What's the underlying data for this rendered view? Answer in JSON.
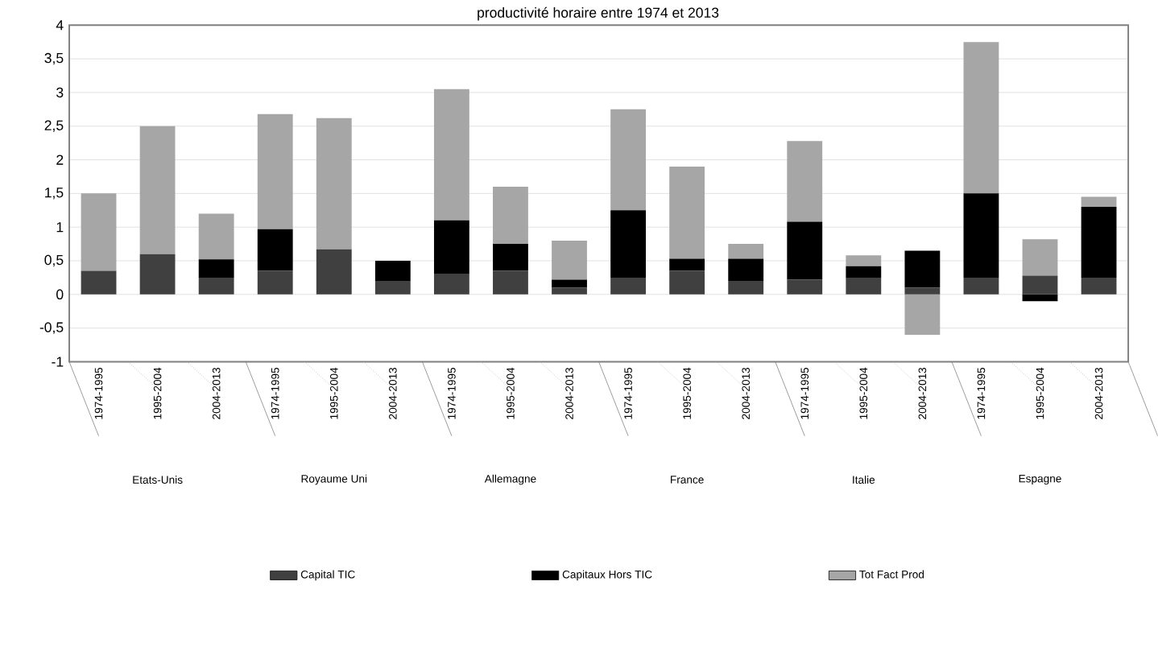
{
  "chart_data": {
    "type": "bar",
    "title": "productivité horaire entre 1974 et 2013",
    "stacked": true,
    "categories": [
      "1974-1995",
      "1995-2004",
      "2004-2013",
      "1974-1995",
      "1995-2004",
      "2004-2013",
      "1974-1995",
      "1995-2004",
      "2004-2013",
      "1974-1995",
      "1995-2004",
      "2004-2013",
      "1974-1995",
      "1995-2004",
      "2004-2013",
      "1974-1995",
      "1995-2004",
      "2004-2013"
    ],
    "series": [
      {
        "name": "Capital TIC",
        "color": "#404040",
        "values": [
          0.35,
          0.6,
          0.25,
          0.35,
          0.67,
          0.2,
          0.3,
          0.35,
          0.1,
          0.25,
          0.35,
          0.2,
          0.22,
          0.25,
          0.1,
          0.25,
          0.28,
          0.25
        ]
      },
      {
        "name": "Capitaux Hors TIC",
        "color": "#000000",
        "values": [
          0,
          0,
          0.27,
          0.62,
          0,
          0.3,
          0.8,
          0.4,
          0.12,
          1.0,
          0.18,
          0.33,
          0.86,
          0.17,
          0.55,
          1.25,
          -0.1,
          1.05
        ]
      },
      {
        "name": "Tot Fact Prod",
        "color": "#a6a6a6",
        "values": [
          1.15,
          1.9,
          0.68,
          1.71,
          1.95,
          0,
          1.95,
          0.85,
          0.58,
          1.5,
          1.37,
          0.22,
          1.2,
          0.16,
          -0.6,
          2.25,
          0.54,
          0.15
        ]
      }
    ],
    "ylim": [
      -1,
      4
    ],
    "yticks": [
      -1,
      {
        "value": -0.5,
        "label": "-0,5"
      },
      0,
      {
        "value": 0.5,
        "label": "0,5"
      },
      1,
      {
        "value": 1.5,
        "label": "1,5"
      },
      2,
      {
        "value": 2.5,
        "label": "2,5"
      },
      3,
      {
        "value": 3.5,
        "label": "3,5"
      },
      4
    ],
    "grid": "y",
    "legend": "bottom",
    "annotations": [
      "Etats-Unis",
      "Royaume Uni",
      "Allemagne",
      "France",
      "Italie",
      "Espagne"
    ]
  }
}
